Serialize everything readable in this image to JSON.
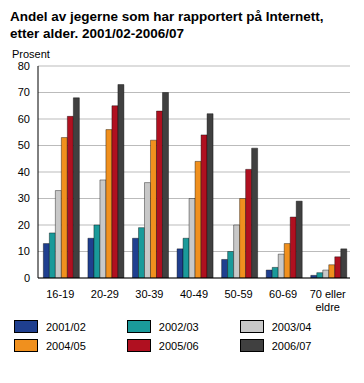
{
  "chart_data": {
    "type": "bar",
    "title": "Andel av jegerne som har rapportert på Internett, etter alder. 2001/02-2006/07",
    "y_label": "Prosent",
    "categories": [
      "16-19",
      "20-29",
      "30-39",
      "40-49",
      "50-59",
      "60-69",
      "70 eller eldre"
    ],
    "series": [
      {
        "name": "2001/02",
        "color": "#1f3f8f",
        "values": [
          13,
          15,
          15,
          11,
          7,
          3,
          1
        ]
      },
      {
        "name": "2002/03",
        "color": "#1a9a9a",
        "values": [
          17,
          20,
          19,
          15,
          10,
          4,
          2
        ]
      },
      {
        "name": "2003/04",
        "color": "#c8c8c8",
        "values": [
          33,
          37,
          36,
          30,
          20,
          9,
          3
        ]
      },
      {
        "name": "2004/05",
        "color": "#f0901e",
        "values": [
          53,
          56,
          52,
          44,
          30,
          13,
          5
        ]
      },
      {
        "name": "2005/06",
        "color": "#b01020",
        "values": [
          61,
          65,
          63,
          54,
          41,
          23,
          8
        ]
      },
      {
        "name": "2006/07",
        "color": "#404040",
        "values": [
          68,
          73,
          70,
          62,
          49,
          29,
          11
        ]
      }
    ],
    "ylim": [
      0,
      80
    ],
    "yticks": [
      0,
      10,
      20,
      30,
      40,
      50,
      60,
      70,
      80
    ],
    "grid": true
  }
}
